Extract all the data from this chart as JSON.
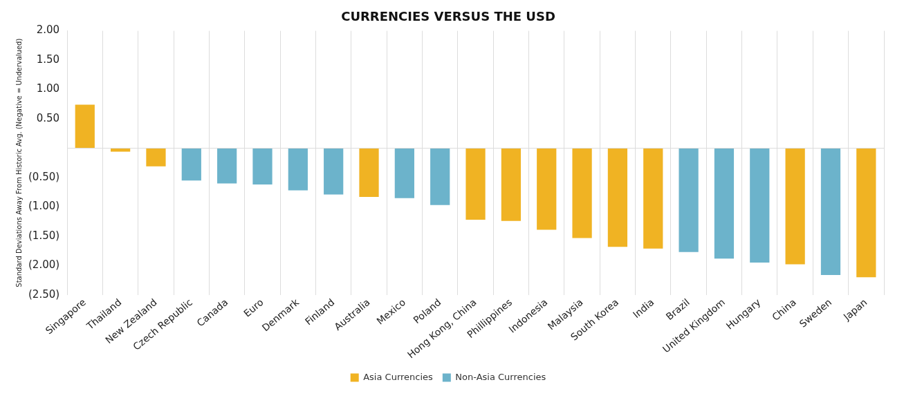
{
  "chart_data": {
    "type": "bar",
    "title": "CURRENCIES VERSUS THE USD",
    "ylabel": "Standard Deviations Away From Historic Avg. (Negative = Undervalued)",
    "categories": [
      "Singapore",
      "Thailand",
      "New Zealand",
      "Czech Republic",
      "Canada",
      "Euro",
      "Denmark",
      "Finland",
      "Australia",
      "Mexico",
      "Poland",
      "Hong Kong, China",
      "Phillippines",
      "Indonesia",
      "Malaysia",
      "South Korea",
      "India",
      "Brazil",
      "United Kingdom",
      "Hungary",
      "China",
      "Sweden",
      "Japan"
    ],
    "series": [
      {
        "name": "Asia Currencies",
        "color": "#f0b323",
        "values": [
          0.74,
          -0.06,
          -0.31,
          null,
          null,
          null,
          null,
          null,
          -0.83,
          null,
          null,
          -1.22,
          -1.24,
          -1.39,
          -1.53,
          -1.68,
          -1.71,
          null,
          null,
          null,
          -1.98,
          null,
          -2.2
        ]
      },
      {
        "name": "Non-Asia Currencies",
        "color": "#6cb3cb",
        "values": [
          null,
          null,
          null,
          -0.55,
          -0.6,
          -0.62,
          -0.72,
          -0.79,
          null,
          -0.85,
          -0.97,
          null,
          null,
          null,
          null,
          null,
          null,
          -1.77,
          -1.88,
          -1.95,
          null,
          -2.16,
          null
        ]
      }
    ],
    "ylim": [
      -2.5,
      2
    ],
    "yticks": [
      {
        "value": 2,
        "label": "2.00"
      },
      {
        "value": 1.5,
        "label": "1.50"
      },
      {
        "value": 1,
        "label": "1.00"
      },
      {
        "value": 0.5,
        "label": "0.50"
      },
      {
        "value": 0,
        "label": null
      },
      {
        "value": -0.5,
        "label": "(0.50)"
      },
      {
        "value": -1,
        "label": "(1.00)"
      },
      {
        "value": -1.5,
        "label": "(1.50)"
      },
      {
        "value": -2,
        "label": "(2.00)"
      },
      {
        "value": -2.5,
        "label": "(2.50)"
      }
    ],
    "ref_lines": [
      {
        "axis": "y",
        "value": 0,
        "color": "#dcdcdc"
      }
    ],
    "grid": "x",
    "legend": "bottom"
  }
}
